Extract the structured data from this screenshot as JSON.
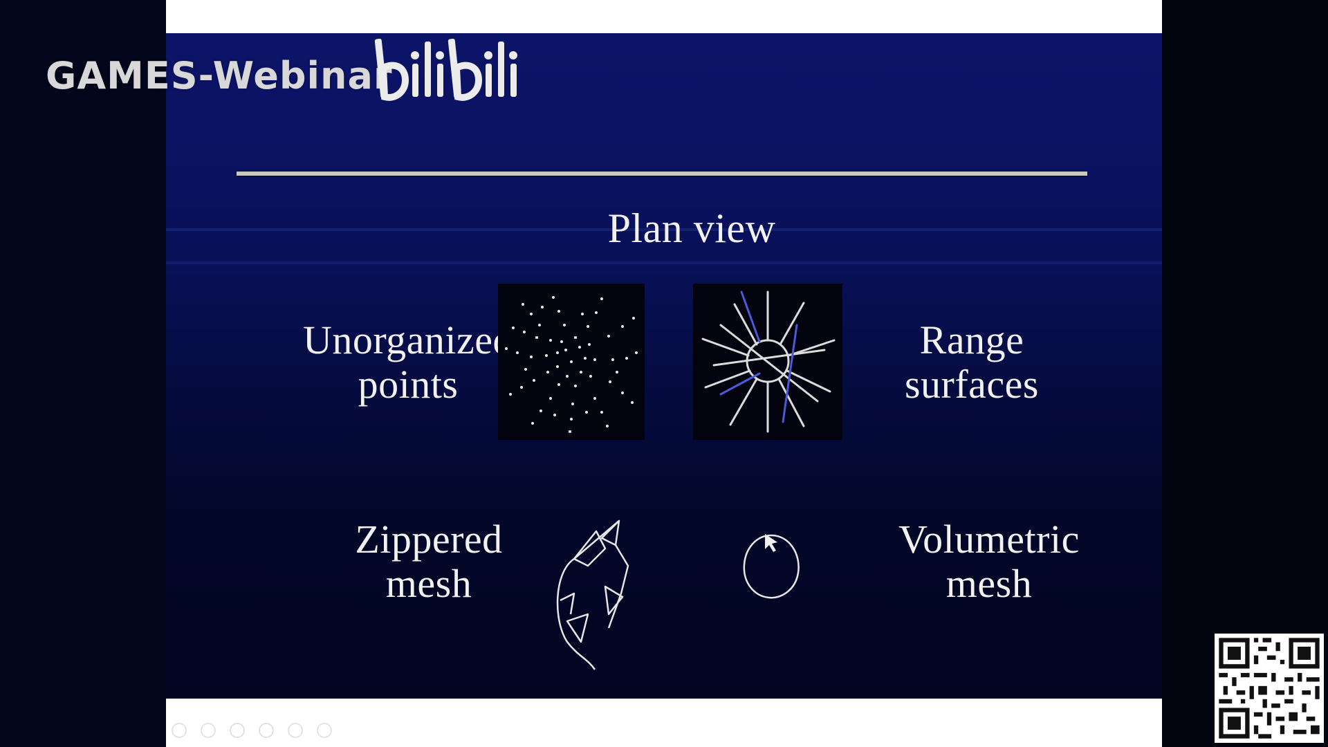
{
  "watermark": {
    "channel": "GAMES-Webinar",
    "platform_logo": "bilibili"
  },
  "slide": {
    "title": "Plan view",
    "panels": [
      {
        "lines": [
          "Unorganized",
          "points"
        ],
        "icon": "unorganized-points-figure"
      },
      {
        "lines": [
          "Range",
          "surfaces"
        ],
        "icon": "range-surfaces-figure"
      },
      {
        "lines": [
          "Zippered",
          "mesh"
        ],
        "icon": "zippered-mesh-figure"
      },
      {
        "lines": [
          "Volumetric",
          "mesh"
        ],
        "icon": "volumetric-mesh-figure"
      }
    ]
  },
  "toolbar": {
    "icons": [
      "back-icon",
      "forward-icon",
      "pen-icon",
      "copy-icon",
      "zoom-icon",
      "more-icon"
    ]
  },
  "qr": {
    "icon": "qr-code-icon"
  },
  "colors": {
    "slide_top": "#0c1468",
    "slide_bottom": "#020520",
    "text": "#f2f2f2",
    "rule": "#c9c9c0"
  }
}
